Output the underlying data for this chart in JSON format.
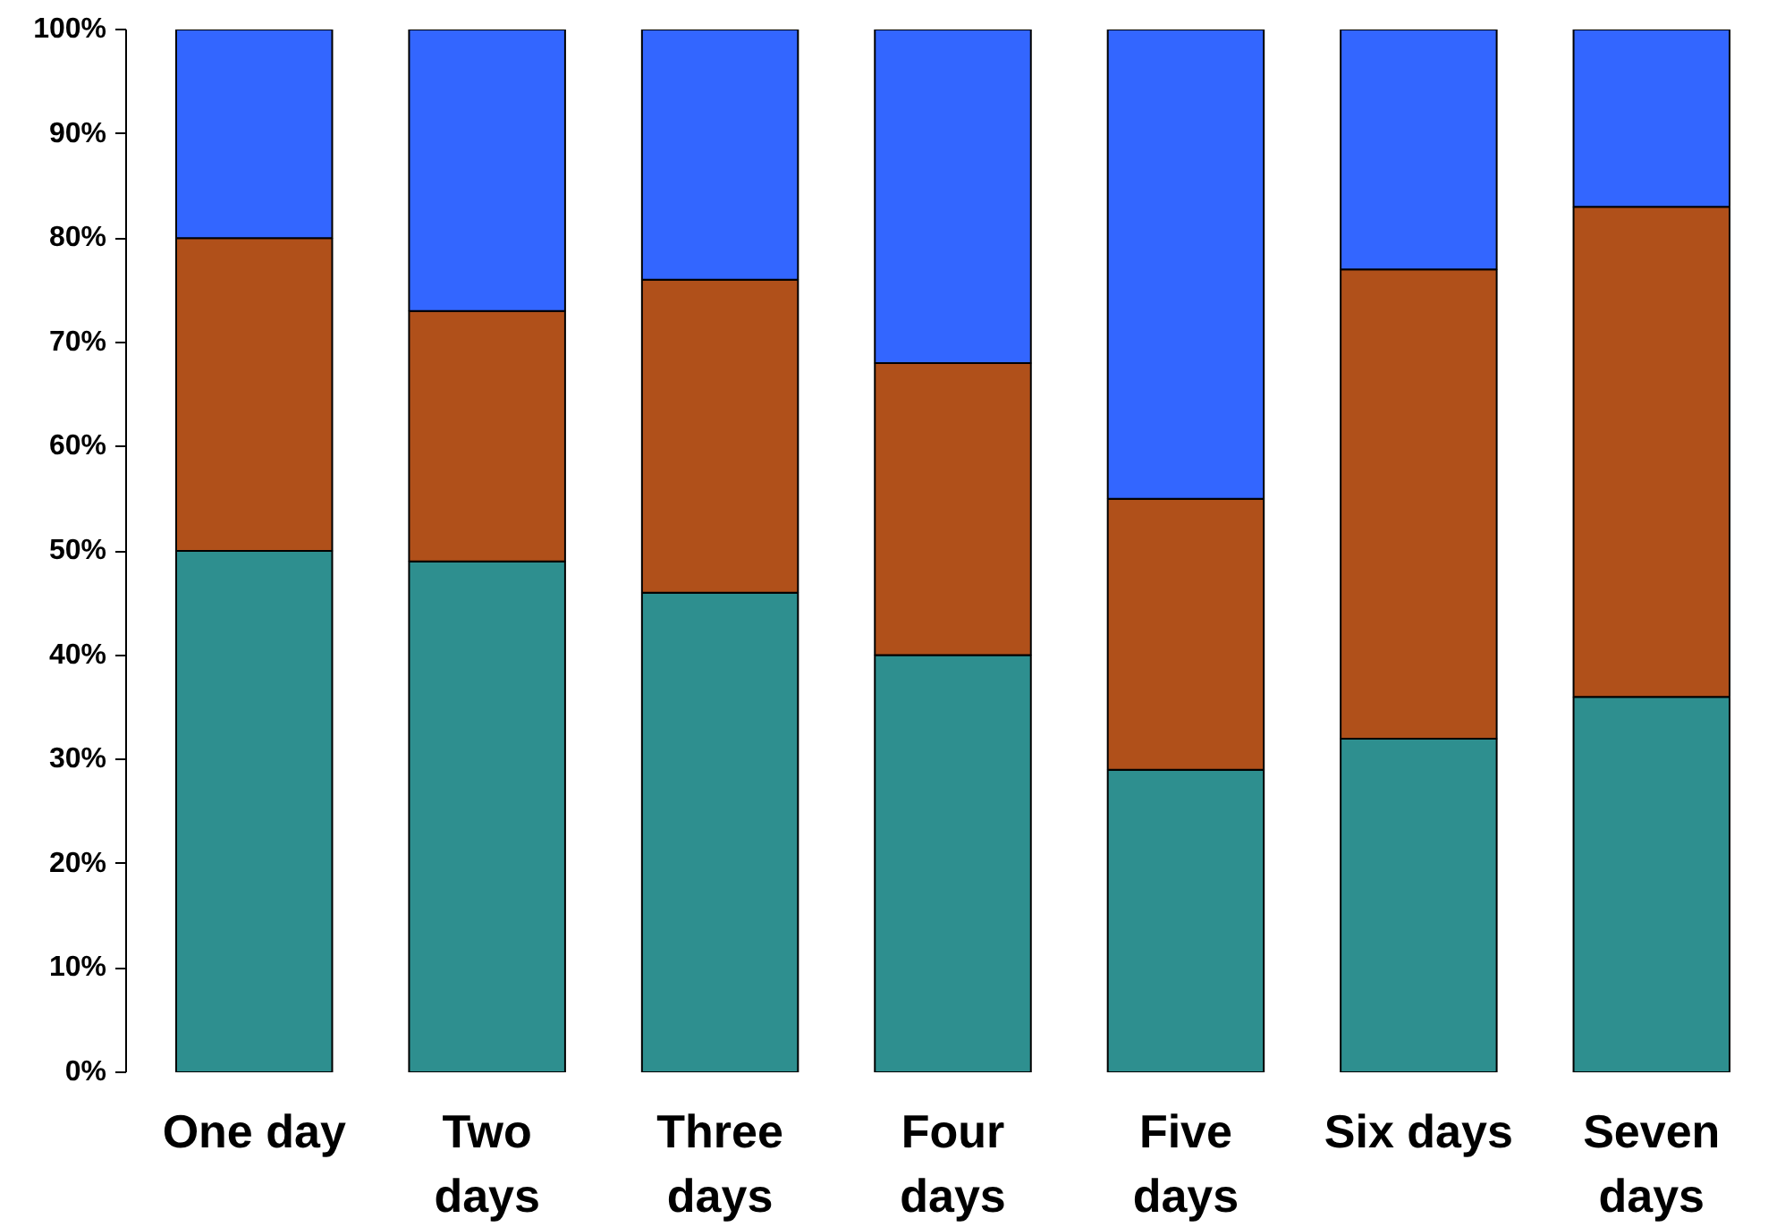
{
  "chart_data": {
    "type": "bar",
    "stacked": true,
    "categories": [
      "One day",
      "Two\ndays",
      "Three\ndays",
      "Four\ndays",
      "Five\ndays",
      "Six days",
      "Seven\ndays"
    ],
    "series": [
      {
        "color": "#2e8f8f",
        "values": [
          50,
          49,
          46,
          40,
          29,
          32,
          36
        ]
      },
      {
        "color": "#b0501a",
        "values": [
          30,
          24,
          30,
          28,
          26,
          45,
          47
        ]
      },
      {
        "color": "#3366ff",
        "values": [
          20,
          27,
          24,
          32,
          45,
          23,
          17
        ]
      }
    ],
    "ylim": [
      0,
      100
    ],
    "yticks": [
      {
        "value": 0,
        "label": "0%"
      },
      {
        "value": 10,
        "label": "10%"
      },
      {
        "value": 20,
        "label": "20%"
      },
      {
        "value": 30,
        "label": "30%"
      },
      {
        "value": 40,
        "label": "40%"
      },
      {
        "value": 50,
        "label": "50%"
      },
      {
        "value": 60,
        "label": "60%"
      },
      {
        "value": 70,
        "label": "70%"
      },
      {
        "value": 80,
        "label": "80%"
      },
      {
        "value": 90,
        "label": "90%"
      },
      {
        "value": 100,
        "label": "100%"
      }
    ],
    "grid": false
  }
}
